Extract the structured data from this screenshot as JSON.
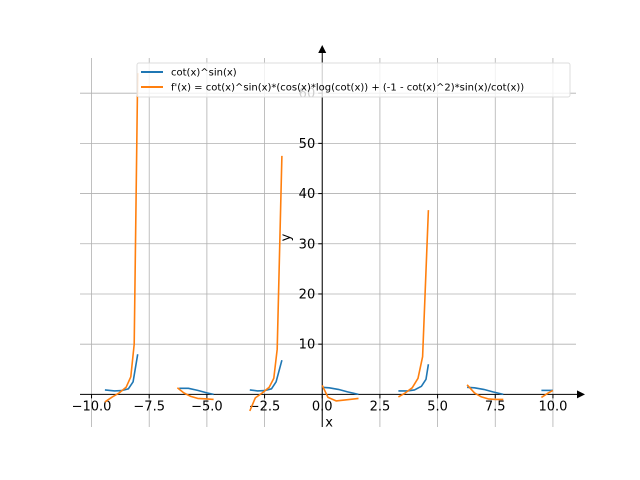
{
  "chart_data": {
    "type": "line",
    "xlabel": "x",
    "ylabel": "y",
    "xlim": [
      -10.5,
      11.0
    ],
    "ylim": [
      -6.5,
      69.0
    ],
    "x_ticks": [
      -10.0,
      -7.5,
      -5.0,
      -2.5,
      0.0,
      2.5,
      5.0,
      7.5,
      10.0
    ],
    "x_tick_labels": [
      "−10.0",
      "−7.5",
      "−5.0",
      "−2.5",
      "0.0",
      "2.5",
      "5.0",
      "7.5",
      "10.0"
    ],
    "y_ticks": [
      10,
      20,
      30,
      40,
      50,
      60
    ],
    "y_tick_labels": [
      "10",
      "20",
      "30",
      "40",
      "50",
      "60"
    ],
    "grid": true,
    "legend_position": "top-right",
    "series": [
      {
        "name": "cot(x)^sin(x)",
        "color": "#1f77b4",
        "segments": [
          [
            [
              -9.42,
              0.9
            ],
            [
              -9.0,
              0.7
            ],
            [
              -8.7,
              0.75
            ],
            [
              -8.4,
              1.1
            ],
            [
              -8.2,
              2.5
            ],
            [
              -8.0,
              8.0
            ]
          ],
          [
            [
              -6.2,
              1.2
            ],
            [
              -5.8,
              1.2
            ],
            [
              -5.4,
              0.8
            ],
            [
              -5.0,
              0.3
            ],
            [
              -4.71,
              0.0
            ]
          ],
          [
            [
              -3.14,
              0.9
            ],
            [
              -2.8,
              0.7
            ],
            [
              -2.5,
              0.75
            ],
            [
              -2.2,
              1.1
            ],
            [
              -2.0,
              2.5
            ],
            [
              -1.75,
              6.8
            ]
          ],
          [
            [
              0.0,
              1.4
            ],
            [
              0.3,
              1.3
            ],
            [
              0.7,
              1.0
            ],
            [
              1.1,
              0.5
            ],
            [
              1.57,
              0.0
            ]
          ],
          [
            [
              3.3,
              0.7
            ],
            [
              3.7,
              0.7
            ],
            [
              4.0,
              0.9
            ],
            [
              4.3,
              1.6
            ],
            [
              4.5,
              3.0
            ],
            [
              4.6,
              6.0
            ]
          ],
          [
            [
              6.28,
              1.4
            ],
            [
              6.6,
              1.3
            ],
            [
              7.0,
              1.0
            ],
            [
              7.4,
              0.5
            ],
            [
              7.85,
              0.0
            ]
          ],
          [
            [
              9.5,
              0.8
            ],
            [
              9.8,
              0.8
            ],
            [
              10.0,
              0.8
            ]
          ]
        ]
      },
      {
        "name": "f'(x) = cot(x)^sin(x)*(cos(x)*log(cot(x)) + (-1 - cot(x)^2)*sin(x)/cot(x))",
        "color": "#ff7f0e",
        "segments": [
          [
            [
              -9.42,
              -1.5
            ],
            [
              -9.1,
              -0.5
            ],
            [
              -8.8,
              0.3
            ],
            [
              -8.5,
              1.4
            ],
            [
              -8.3,
              3.5
            ],
            [
              -8.15,
              10.0
            ],
            [
              -8.0,
              64.0
            ]
          ],
          [
            [
              -6.28,
              1.3
            ],
            [
              -6.0,
              0.3
            ],
            [
              -5.7,
              -0.4
            ],
            [
              -5.4,
              -0.8
            ],
            [
              -5.0,
              -0.9
            ],
            [
              -4.71,
              -1.0
            ]
          ],
          [
            [
              -3.14,
              -3.3
            ],
            [
              -2.9,
              -0.7
            ],
            [
              -2.6,
              0.3
            ],
            [
              -2.3,
              1.4
            ],
            [
              -2.1,
              3.2
            ],
            [
              -1.95,
              9.0
            ],
            [
              -1.75,
              47.5
            ]
          ],
          [
            [
              0.0,
              1.8
            ],
            [
              0.25,
              -0.6
            ],
            [
              0.6,
              -1.3
            ],
            [
              1.0,
              -1.1
            ],
            [
              1.57,
              -0.8
            ]
          ],
          [
            [
              3.3,
              -0.5
            ],
            [
              3.6,
              0.3
            ],
            [
              3.9,
              1.3
            ],
            [
              4.15,
              3.2
            ],
            [
              4.35,
              7.5
            ],
            [
              4.6,
              36.7
            ]
          ],
          [
            [
              6.28,
              1.9
            ],
            [
              6.6,
              0.3
            ],
            [
              6.9,
              -0.5
            ],
            [
              7.2,
              -0.9
            ],
            [
              7.5,
              -1.0
            ],
            [
              7.85,
              -1.0
            ]
          ],
          [
            [
              9.5,
              -0.6
            ],
            [
              9.8,
              0.3
            ],
            [
              10.0,
              0.8
            ]
          ]
        ]
      }
    ]
  }
}
